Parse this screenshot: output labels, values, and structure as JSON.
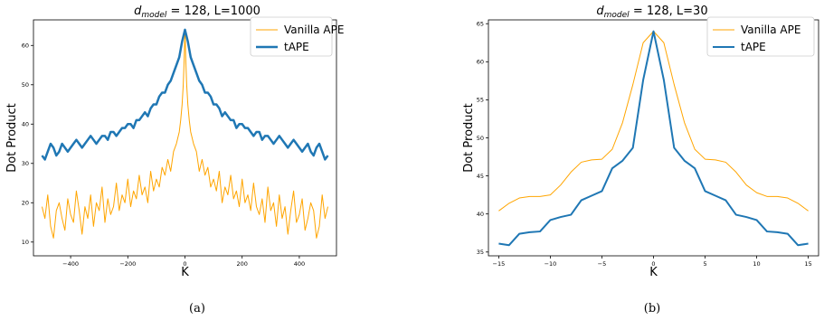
{
  "chart_data": [
    {
      "type": "line",
      "title": "d_model = 128, L=1000",
      "title_parts": {
        "var": "d",
        "sub": "model",
        "rest": " = 128, L=1000"
      },
      "xlabel": "K",
      "ylabel": "Dot Product",
      "xlim": [
        -530,
        530
      ],
      "ylim": [
        6.5,
        66.5
      ],
      "xticks": [
        -400,
        -200,
        0,
        200,
        400
      ],
      "yticks": [
        10,
        20,
        30,
        40,
        50,
        60
      ],
      "legend_position": "top-right",
      "caption": "(a)",
      "series": [
        {
          "name": "Vanilla APE",
          "color": "#ffa500",
          "line_width": 1,
          "x": [
            -500,
            -490,
            -480,
            -470,
            -460,
            -450,
            -440,
            -430,
            -420,
            -410,
            -400,
            -390,
            -380,
            -370,
            -360,
            -350,
            -340,
            -330,
            -320,
            -310,
            -300,
            -290,
            -280,
            -270,
            -260,
            -250,
            -240,
            -230,
            -220,
            -210,
            -200,
            -190,
            -180,
            -170,
            -160,
            -150,
            -140,
            -130,
            -120,
            -110,
            -100,
            -90,
            -80,
            -70,
            -60,
            -50,
            -40,
            -30,
            -20,
            -15,
            -10,
            -6,
            -3,
            0,
            3,
            6,
            10,
            15,
            20,
            30,
            40,
            50,
            60,
            70,
            80,
            90,
            100,
            110,
            120,
            130,
            140,
            150,
            160,
            170,
            180,
            190,
            200,
            210,
            220,
            230,
            240,
            250,
            260,
            270,
            280,
            290,
            300,
            310,
            320,
            330,
            340,
            350,
            360,
            370,
            380,
            390,
            400,
            410,
            420,
            430,
            440,
            450,
            460,
            470,
            480,
            490,
            500
          ],
          "y": [
            19,
            16,
            22,
            14,
            11,
            18,
            20,
            16,
            13,
            21,
            17,
            15,
            23,
            18,
            12,
            19,
            16,
            22,
            14,
            20,
            18,
            24,
            15,
            21,
            17,
            19,
            25,
            18,
            22,
            20,
            26,
            19,
            23,
            21,
            27,
            22,
            24,
            20,
            28,
            23,
            26,
            24,
            29,
            27,
            31,
            28,
            33,
            35,
            38,
            41,
            45,
            50,
            56,
            64,
            56,
            50,
            45,
            41,
            38,
            35,
            33,
            28,
            31,
            27,
            29,
            24,
            26,
            23,
            28,
            20,
            24,
            22,
            27,
            21,
            23,
            19,
            26,
            20,
            22,
            18,
            25,
            19,
            17,
            21,
            15,
            24,
            18,
            20,
            14,
            22,
            16,
            19,
            12,
            18,
            23,
            15,
            17,
            21,
            13,
            16,
            20,
            18,
            11,
            14,
            22,
            16,
            19
          ]
        },
        {
          "name": "tAPE",
          "color": "#1f77b4",
          "line_width": 2.5,
          "x": [
            -500,
            -490,
            -480,
            -470,
            -460,
            -450,
            -440,
            -430,
            -420,
            -410,
            -400,
            -390,
            -380,
            -370,
            -360,
            -350,
            -340,
            -330,
            -320,
            -310,
            -300,
            -290,
            -280,
            -270,
            -260,
            -250,
            -240,
            -230,
            -220,
            -210,
            -200,
            -190,
            -180,
            -170,
            -160,
            -150,
            -140,
            -130,
            -120,
            -110,
            -100,
            -90,
            -80,
            -70,
            -60,
            -50,
            -40,
            -30,
            -20,
            -10,
            0,
            10,
            20,
            30,
            40,
            50,
            60,
            70,
            80,
            90,
            100,
            110,
            120,
            130,
            140,
            150,
            160,
            170,
            180,
            190,
            200,
            210,
            220,
            230,
            240,
            250,
            260,
            270,
            280,
            290,
            300,
            310,
            320,
            330,
            340,
            350,
            360,
            370,
            380,
            390,
            400,
            410,
            420,
            430,
            440,
            450,
            460,
            470,
            480,
            490,
            500
          ],
          "y": [
            32,
            31,
            33,
            35,
            34,
            32,
            33,
            35,
            34,
            33,
            34,
            35,
            36,
            35,
            34,
            35,
            36,
            37,
            36,
            35,
            36,
            37,
            37,
            36,
            38,
            38,
            37,
            38,
            39,
            39,
            40,
            40,
            39,
            41,
            41,
            42,
            43,
            42,
            44,
            45,
            45,
            47,
            48,
            48,
            50,
            51,
            53,
            55,
            57,
            61,
            64,
            61,
            57,
            55,
            53,
            51,
            50,
            48,
            48,
            47,
            45,
            45,
            44,
            42,
            43,
            42,
            41,
            41,
            39,
            40,
            40,
            39,
            39,
            38,
            37,
            38,
            38,
            36,
            37,
            37,
            36,
            35,
            36,
            37,
            36,
            35,
            34,
            35,
            36,
            35,
            34,
            33,
            34,
            35,
            33,
            32,
            34,
            35,
            33,
            31,
            32
          ]
        }
      ]
    },
    {
      "type": "line",
      "title": "d_model = 128, L=30",
      "title_parts": {
        "var": "d",
        "sub": "model",
        "rest": " = 128, L=30"
      },
      "xlabel": "K",
      "ylabel": "Dot Product",
      "xlim": [
        -16,
        16
      ],
      "ylim": [
        34.5,
        65.5
      ],
      "xticks": [
        -15,
        -10,
        -5,
        0,
        5,
        10,
        15
      ],
      "yticks": [
        35,
        40,
        45,
        50,
        55,
        60,
        65
      ],
      "legend_position": "top-right",
      "caption": "(b)",
      "series": [
        {
          "name": "Vanilla APE",
          "color": "#ffa500",
          "line_width": 1,
          "x": [
            -15,
            -14,
            -13,
            -12,
            -11,
            -10,
            -9,
            -8,
            -7,
            -6,
            -5,
            -4,
            -3,
            -2,
            -1,
            0,
            1,
            2,
            3,
            4,
            5,
            6,
            7,
            8,
            9,
            10,
            11,
            12,
            13,
            14,
            15
          ],
          "y": [
            40.4,
            41.4,
            42.1,
            42.3,
            42.3,
            42.5,
            43.8,
            45.5,
            46.8,
            47.1,
            47.2,
            48.5,
            52.0,
            57.0,
            62.5,
            64.0,
            62.5,
            57.0,
            52.0,
            48.5,
            47.2,
            47.1,
            46.8,
            45.5,
            43.8,
            42.8,
            42.3,
            42.3,
            42.1,
            41.4,
            40.4
          ]
        },
        {
          "name": "tAPE",
          "color": "#1f77b4",
          "line_width": 2,
          "x": [
            -15,
            -14,
            -13,
            -12,
            -11,
            -10,
            -9,
            -8,
            -7,
            -6,
            -5,
            -4,
            -3,
            -2,
            -1,
            0,
            1,
            2,
            3,
            4,
            5,
            6,
            7,
            8,
            9,
            10,
            11,
            12,
            13,
            14,
            15
          ],
          "y": [
            36.1,
            35.9,
            37.4,
            37.6,
            37.7,
            39.2,
            39.6,
            39.9,
            41.8,
            42.4,
            43.0,
            46.0,
            47.0,
            48.7,
            57.6,
            64.0,
            57.6,
            48.7,
            47.0,
            46.0,
            43.0,
            42.4,
            41.8,
            39.9,
            39.6,
            39.2,
            37.7,
            37.6,
            37.4,
            35.9,
            36.1
          ]
        }
      ]
    }
  ]
}
